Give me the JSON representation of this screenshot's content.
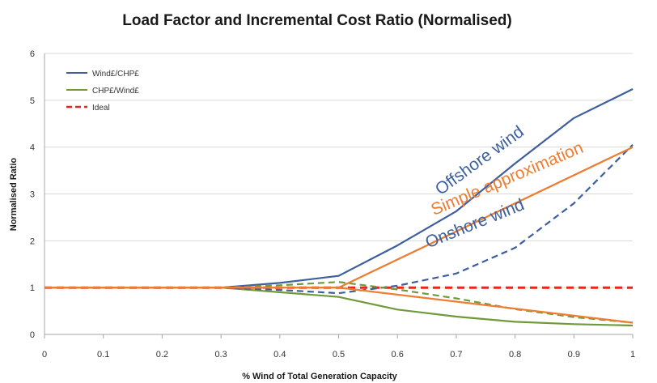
{
  "chart_data": {
    "type": "line",
    "title": "Load Factor and Incremental Cost Ratio (Normalised)",
    "xlabel": "% Wind of Total Generation Capacity",
    "ylabel": "Normalised Ratio",
    "xlim": [
      0,
      1
    ],
    "ylim": [
      0,
      6
    ],
    "xticks": [
      "0",
      "0.1",
      "0.2",
      "0.3",
      "0.4",
      "0.5",
      "0.6",
      "0.7",
      "0.8",
      "0.9",
      "1"
    ],
    "yticks": [
      "0",
      "1",
      "2",
      "3",
      "4",
      "5",
      "6"
    ],
    "grid": "horizontal",
    "legend_position": "top-left",
    "legend": [
      {
        "label": "Wind£/CHP£",
        "color": "#3d5f9e",
        "style": "solid"
      },
      {
        "label": "CHP£/Wind£",
        "color": "#6f9a3a",
        "style": "solid"
      },
      {
        "label": "Ideal",
        "color": "#e8261f",
        "style": "dashed"
      }
    ],
    "series": [
      {
        "legend_index": 0,
        "color": "#3d5f9e",
        "dash": "solid",
        "x": [
          0,
          0.1,
          0.2,
          0.3,
          0.4,
          0.5,
          0.6,
          0.7,
          0.8,
          0.9,
          1
        ],
        "y": [
          1.0,
          1.0,
          1.0,
          1.0,
          1.1,
          1.25,
          1.9,
          2.63,
          3.65,
          4.62,
          5.24
        ]
      },
      {
        "legend_index": 1,
        "color": "#6f9a3a",
        "dash": "solid",
        "x": [
          0,
          0.1,
          0.2,
          0.3,
          0.4,
          0.5,
          0.6,
          0.7,
          0.8,
          0.9,
          1
        ],
        "y": [
          1.0,
          1.0,
          1.0,
          1.0,
          0.9,
          0.8,
          0.53,
          0.38,
          0.27,
          0.22,
          0.19
        ]
      },
      {
        "legend_index": 2,
        "color": "#e8261f",
        "dash": "dashed",
        "width": 3,
        "x": [
          0,
          1
        ],
        "y": [
          1.0,
          1.0
        ]
      },
      {
        "color": "#3d5f9e",
        "dash": "dashed",
        "x": [
          0,
          0.1,
          0.2,
          0.3,
          0.4,
          0.5,
          0.6,
          0.7,
          0.8,
          0.9,
          1
        ],
        "y": [
          1.0,
          1.0,
          1.0,
          1.0,
          0.95,
          0.88,
          1.04,
          1.3,
          1.85,
          2.8,
          4.05
        ]
      },
      {
        "color": "#6f9a3a",
        "dash": "dashed",
        "x": [
          0,
          0.1,
          0.2,
          0.3,
          0.4,
          0.5,
          0.6,
          0.7,
          0.8,
          0.9,
          1
        ],
        "y": [
          1.0,
          1.0,
          1.0,
          1.0,
          1.05,
          1.12,
          0.96,
          0.77,
          0.54,
          0.37,
          0.25
        ]
      },
      {
        "color": "#ed7d31",
        "dash": "solid",
        "x": [
          0,
          0.3,
          0.5,
          1
        ],
        "y": [
          1.0,
          1.0,
          1.0,
          4.0
        ]
      },
      {
        "color": "#ed7d31",
        "dash": "solid",
        "x": [
          0,
          0.3,
          0.5,
          1
        ],
        "y": [
          1.0,
          1.0,
          1.0,
          0.25
        ]
      }
    ],
    "annotations": [
      {
        "text": "Offshore wind",
        "color": "#3d5f9e",
        "x": 0.745,
        "y": 3.62,
        "angle": -36
      },
      {
        "text": "Simple approximation",
        "color": "#ed7d31",
        "x": 0.79,
        "y": 3.22,
        "angle": -23
      },
      {
        "text": "Onshore wind",
        "color": "#3d5f9e",
        "x": 0.735,
        "y": 2.26,
        "angle": -22
      }
    ]
  }
}
